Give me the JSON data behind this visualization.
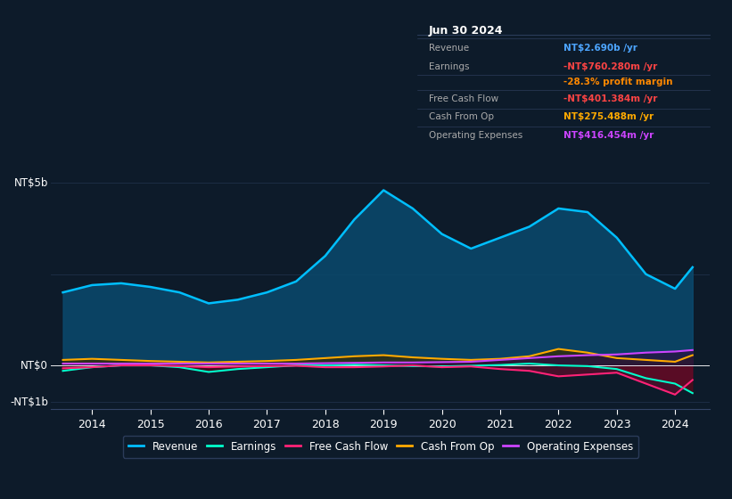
{
  "background_color": "#0d1b2a",
  "plot_bg_color": "#0d1b2a",
  "grid_color": "#1e3048",
  "title_box": {
    "date": "Jun 30 2024",
    "rows": [
      {
        "label": "Revenue",
        "value": "NT$2.690b /yr",
        "value_color": "#4da6ff"
      },
      {
        "label": "Earnings",
        "value": "-NT$760.280m /yr",
        "value_color": "#ff4444"
      },
      {
        "label": "",
        "value": "-28.3% profit margin",
        "value_color": "#ff8800"
      },
      {
        "label": "Free Cash Flow",
        "value": "-NT$401.384m /yr",
        "value_color": "#ff4444"
      },
      {
        "label": "Cash From Op",
        "value": "NT$275.488m /yr",
        "value_color": "#ffaa00"
      },
      {
        "label": "Operating Expenses",
        "value": "NT$416.454m /yr",
        "value_color": "#cc44ff"
      }
    ]
  },
  "legend": [
    {
      "label": "Revenue",
      "color": "#00bfff"
    },
    {
      "label": "Earnings",
      "color": "#00ffcc"
    },
    {
      "label": "Free Cash Flow",
      "color": "#ff2277"
    },
    {
      "label": "Cash From Op",
      "color": "#ffaa00"
    },
    {
      "label": "Operating Expenses",
      "color": "#cc44ff"
    }
  ],
  "years": [
    2013.5,
    2014.0,
    2014.5,
    2015.0,
    2015.5,
    2016.0,
    2016.5,
    2017.0,
    2017.5,
    2018.0,
    2018.5,
    2019.0,
    2019.5,
    2020.0,
    2020.5,
    2021.0,
    2021.5,
    2022.0,
    2022.5,
    2023.0,
    2023.5,
    2024.0,
    2024.3
  ],
  "revenue": [
    2.0,
    2.2,
    2.25,
    2.15,
    2.0,
    1.7,
    1.8,
    2.0,
    2.3,
    3.0,
    4.0,
    4.8,
    4.3,
    3.6,
    3.2,
    3.5,
    3.8,
    4.3,
    4.2,
    3.5,
    2.5,
    2.1,
    2.69
  ],
  "earnings": [
    -0.15,
    -0.05,
    0.0,
    0.0,
    -0.05,
    -0.18,
    -0.1,
    -0.05,
    0.0,
    0.0,
    0.02,
    0.0,
    -0.02,
    -0.03,
    -0.01,
    0.01,
    0.05,
    0.0,
    -0.02,
    -0.1,
    -0.35,
    -0.5,
    -0.76
  ],
  "free_cash": [
    -0.08,
    -0.05,
    0.0,
    0.0,
    -0.02,
    -0.05,
    -0.03,
    -0.02,
    -0.01,
    -0.05,
    -0.05,
    -0.03,
    0.0,
    -0.05,
    -0.03,
    -0.1,
    -0.15,
    -0.3,
    -0.25,
    -0.2,
    -0.5,
    -0.8,
    -0.4
  ],
  "cash_op": [
    0.15,
    0.18,
    0.15,
    0.12,
    0.1,
    0.08,
    0.1,
    0.12,
    0.15,
    0.2,
    0.25,
    0.28,
    0.22,
    0.18,
    0.15,
    0.18,
    0.25,
    0.45,
    0.35,
    0.2,
    0.15,
    0.1,
    0.28
  ],
  "op_expenses": [
    0.05,
    0.05,
    0.05,
    0.05,
    0.05,
    0.05,
    0.05,
    0.05,
    0.05,
    0.06,
    0.07,
    0.08,
    0.08,
    0.09,
    0.1,
    0.15,
    0.2,
    0.25,
    0.28,
    0.3,
    0.35,
    0.38,
    0.42
  ],
  "xlim": [
    2013.3,
    2024.6
  ],
  "ylim": [
    -1.2,
    5.5
  ],
  "xticks": [
    2014,
    2015,
    2016,
    2017,
    2018,
    2019,
    2020,
    2021,
    2022,
    2023,
    2024
  ]
}
